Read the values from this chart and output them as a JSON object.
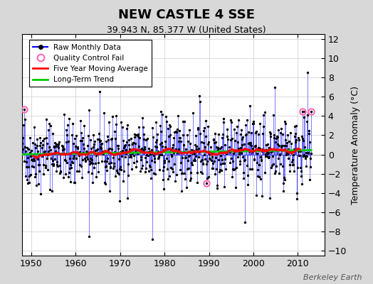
{
  "title": "NEW CASTLE 4 SSE",
  "subtitle": "39.943 N, 85.377 W (United States)",
  "ylabel": "Temperature Anomaly (°C)",
  "credit": "Berkeley Earth",
  "xlim": [
    1948,
    2016
  ],
  "ylim": [
    -10.5,
    12.5
  ],
  "yticks": [
    -10,
    -8,
    -6,
    -4,
    -2,
    0,
    2,
    4,
    6,
    8,
    10,
    12
  ],
  "xticks": [
    1950,
    1960,
    1970,
    1980,
    1990,
    2000,
    2010
  ],
  "bg_color": "#d8d8d8",
  "plot_bg_color": "#ffffff",
  "raw_line_color": "#0000ff",
  "raw_dot_color": "#000000",
  "moving_avg_color": "#ff0000",
  "trend_color": "#00cc00",
  "qc_fail_color": "#ff69b4",
  "seed": 42,
  "n_months": 780,
  "start_year": 1948.0,
  "qc_fail_indices": [
    5,
    497,
    755,
    779
  ],
  "spike_indices": [
    180,
    350,
    480,
    600,
    680,
    755,
    770
  ],
  "spike_values": [
    -8.5,
    -8.8,
    5.5,
    -7.0,
    7.0,
    4.5,
    8.5
  ]
}
